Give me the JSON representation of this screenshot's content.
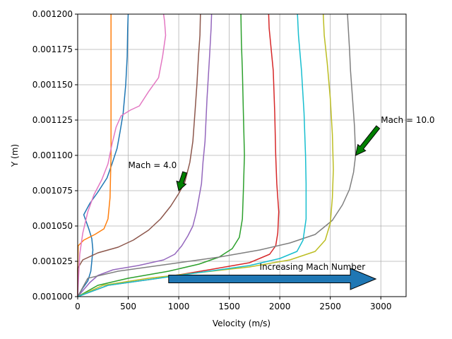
{
  "chart_data": {
    "type": "line",
    "title": "",
    "xlabel": "Velocity (m/s)",
    "ylabel": "Y (m)",
    "xlim": [
      0,
      3250
    ],
    "ylim": [
      0.001,
      0.0012
    ],
    "grid": true,
    "x_ticks": [
      0,
      500,
      1000,
      1500,
      2000,
      2500,
      3000
    ],
    "x_tick_labels": [
      "0",
      "500",
      "1000",
      "1500",
      "2000",
      "2500",
      "3000"
    ],
    "y_ticks": [
      0.001,
      0.001025,
      0.00105,
      0.001075,
      0.0011,
      0.001125,
      0.00115,
      0.001175,
      0.0012
    ],
    "y_tick_labels": [
      "0.001000",
      "0.001025",
      "0.001050",
      "0.001075",
      "0.001100",
      "0.001125",
      "0.001150",
      "0.001175",
      "0.001200"
    ],
    "series": [
      {
        "color": "#1f77b4",
        "points": [
          [
            0,
            0.001
          ],
          [
            50,
            0.001006
          ],
          [
            100,
            0.001011
          ],
          [
            130,
            0.001018
          ],
          [
            140,
            0.001025
          ],
          [
            150,
            0.001033
          ],
          [
            140,
            0.001041
          ],
          [
            110,
            0.001048
          ],
          [
            80,
            0.001054
          ],
          [
            60,
            0.001058
          ],
          [
            120,
            0.001066
          ],
          [
            200,
            0.001074
          ],
          [
            290,
            0.001084
          ],
          [
            340,
            0.001094
          ],
          [
            390,
            0.001105
          ],
          [
            420,
            0.001117
          ],
          [
            450,
            0.00113
          ],
          [
            475,
            0.00115
          ],
          [
            490,
            0.00117
          ],
          [
            495,
            0.00119
          ],
          [
            500,
            0.0012
          ]
        ]
      },
      {
        "color": "#ff7f0e",
        "points": [
          [
            0,
            0.001
          ],
          [
            0,
            0.00102
          ],
          [
            5,
            0.001036
          ],
          [
            60,
            0.00104
          ],
          [
            170,
            0.001044
          ],
          [
            260,
            0.001048
          ],
          [
            300,
            0.001055
          ],
          [
            320,
            0.00107
          ],
          [
            330,
            0.0011
          ],
          [
            330,
            0.00114
          ],
          [
            330,
            0.00117
          ],
          [
            330,
            0.0012
          ]
        ]
      },
      {
        "color": "#2ca02c",
        "points": [
          [
            0,
            0.001
          ],
          [
            200,
            0.001008
          ],
          [
            500,
            0.001013
          ],
          [
            900,
            0.001018
          ],
          [
            1200,
            0.001023
          ],
          [
            1400,
            0.001028
          ],
          [
            1530,
            0.001034
          ],
          [
            1600,
            0.001042
          ],
          [
            1630,
            0.001055
          ],
          [
            1640,
            0.001075
          ],
          [
            1650,
            0.0011
          ],
          [
            1640,
            0.00113
          ],
          [
            1630,
            0.00116
          ],
          [
            1620,
            0.00118
          ],
          [
            1615,
            0.0012
          ]
        ]
      },
      {
        "color": "#d62728",
        "points": [
          [
            0,
            0.001
          ],
          [
            300,
            0.001008
          ],
          [
            800,
            0.001013
          ],
          [
            1300,
            0.001019
          ],
          [
            1700,
            0.001024
          ],
          [
            1900,
            0.00103
          ],
          [
            1960,
            0.001036
          ],
          [
            1980,
            0.001045
          ],
          [
            1990,
            0.00106
          ],
          [
            1970,
            0.00108
          ],
          [
            1960,
            0.0011
          ],
          [
            1950,
            0.00113
          ],
          [
            1935,
            0.00116
          ],
          [
            1895,
            0.00119
          ],
          [
            1890,
            0.0012
          ]
        ]
      },
      {
        "color": "#9467bd",
        "points": [
          [
            0,
            0.001
          ],
          [
            60,
            0.001005
          ],
          [
            120,
            0.00101
          ],
          [
            200,
            0.001015
          ],
          [
            350,
            0.001019
          ],
          [
            600,
            0.001022
          ],
          [
            850,
            0.001026
          ],
          [
            960,
            0.00103
          ],
          [
            1030,
            0.001036
          ],
          [
            1090,
            0.001043
          ],
          [
            1140,
            0.00105
          ],
          [
            1175,
            0.00106
          ],
          [
            1200,
            0.00107
          ],
          [
            1225,
            0.00108
          ],
          [
            1240,
            0.001095
          ],
          [
            1260,
            0.00111
          ],
          [
            1280,
            0.00114
          ],
          [
            1305,
            0.00117
          ],
          [
            1320,
            0.00119
          ],
          [
            1325,
            0.0012
          ]
        ]
      },
      {
        "color": "#8c564b",
        "points": [
          [
            0,
            0.001
          ],
          [
            0,
            0.00102
          ],
          [
            50,
            0.001026
          ],
          [
            200,
            0.001031
          ],
          [
            400,
            0.001035
          ],
          [
            550,
            0.00104
          ],
          [
            700,
            0.001047
          ],
          [
            820,
            0.001055
          ],
          [
            920,
            0.001064
          ],
          [
            1000,
            0.001073
          ],
          [
            1060,
            0.001081
          ],
          [
            1110,
            0.001095
          ],
          [
            1140,
            0.00111
          ],
          [
            1160,
            0.00113
          ],
          [
            1180,
            0.00115
          ],
          [
            1195,
            0.00117
          ],
          [
            1210,
            0.001185
          ],
          [
            1215,
            0.0012
          ]
        ]
      },
      {
        "color": "#e377c2",
        "points": [
          [
            0,
            0.001
          ],
          [
            10,
            0.001015
          ],
          [
            20,
            0.00103
          ],
          [
            50,
            0.001045
          ],
          [
            100,
            0.00106
          ],
          [
            160,
            0.001072
          ],
          [
            240,
            0.001083
          ],
          [
            300,
            0.001094
          ],
          [
            340,
            0.001108
          ],
          [
            380,
            0.00112
          ],
          [
            430,
            0.001128
          ],
          [
            520,
            0.001132
          ],
          [
            610,
            0.001135
          ],
          [
            700,
            0.001145
          ],
          [
            800,
            0.001155
          ],
          [
            840,
            0.00117
          ],
          [
            870,
            0.001185
          ],
          [
            860,
            0.001195
          ],
          [
            850,
            0.0012
          ]
        ]
      },
      {
        "color": "#7f7f7f",
        "points": [
          [
            0,
            0.001
          ],
          [
            100,
            0.001013
          ],
          [
            400,
            0.001018
          ],
          [
            900,
            0.001023
          ],
          [
            1400,
            0.001028
          ],
          [
            1800,
            0.001033
          ],
          [
            2100,
            0.001038
          ],
          [
            2350,
            0.001044
          ],
          [
            2520,
            0.001054
          ],
          [
            2620,
            0.001065
          ],
          [
            2690,
            0.001076
          ],
          [
            2730,
            0.001088
          ],
          [
            2750,
            0.0011
          ],
          [
            2740,
            0.00112
          ],
          [
            2720,
            0.00114
          ],
          [
            2700,
            0.00116
          ],
          [
            2690,
            0.001175
          ],
          [
            2670,
            0.0012
          ]
        ]
      },
      {
        "color": "#bcbd22",
        "points": [
          [
            0,
            0.001
          ],
          [
            250,
            0.001008
          ],
          [
            700,
            0.001013
          ],
          [
            1200,
            0.001017
          ],
          [
            1700,
            0.001021
          ],
          [
            2100,
            0.001026
          ],
          [
            2350,
            0.001032
          ],
          [
            2450,
            0.00104
          ],
          [
            2500,
            0.001052
          ],
          [
            2520,
            0.00107
          ],
          [
            2530,
            0.00109
          ],
          [
            2520,
            0.001115
          ],
          [
            2500,
            0.00114
          ],
          [
            2470,
            0.001165
          ],
          [
            2440,
            0.001185
          ],
          [
            2430,
            0.0012
          ]
        ]
      },
      {
        "color": "#17becf",
        "points": [
          [
            0,
            0.001
          ],
          [
            300,
            0.001008
          ],
          [
            800,
            0.001013
          ],
          [
            1300,
            0.001018
          ],
          [
            1700,
            0.001022
          ],
          [
            2000,
            0.001027
          ],
          [
            2170,
            0.001032
          ],
          [
            2230,
            0.00104
          ],
          [
            2260,
            0.001055
          ],
          [
            2260,
            0.00108
          ],
          [
            2255,
            0.0011
          ],
          [
            2240,
            0.00113
          ],
          [
            2215,
            0.00116
          ],
          [
            2185,
            0.001185
          ],
          [
            2175,
            0.0012
          ]
        ]
      }
    ],
    "annotations": [
      {
        "text": "Mach = 4.0",
        "text_xy": [
          500,
          0.00109
        ],
        "arrow_to": [
          1000,
          0.001075
        ]
      },
      {
        "text": "Mach = 10.0",
        "text_xy": [
          3000,
          0.001125
        ],
        "arrow_to": [
          2750,
          0.0011
        ]
      },
      {
        "text": "Increasing Mach Number",
        "text_xy": [
          1800,
          0.00102
        ],
        "arrow_from": [
          900,
          0.0010125
        ],
        "arrow_to": [
          2950,
          0.0010125
        ]
      }
    ],
    "colors": {
      "grid": "#b0b0b0",
      "annotation_arrow": "#008000",
      "big_arrow": "#1f77b4"
    }
  }
}
